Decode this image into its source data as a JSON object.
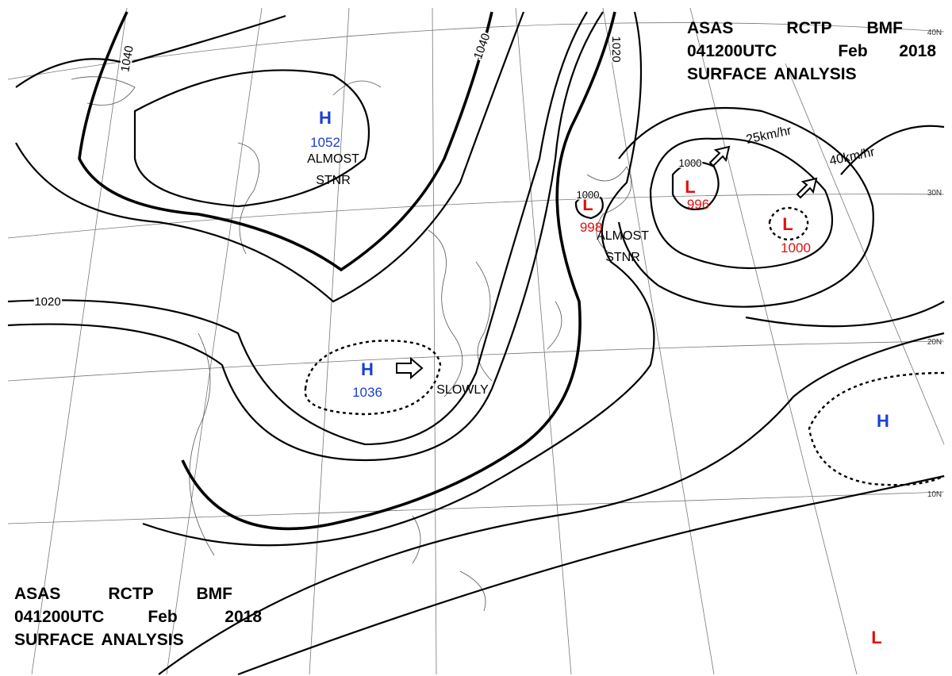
{
  "header_top": {
    "line1": [
      "ASAS",
      "RCTP",
      "BMF"
    ],
    "line2": [
      "041200UTC",
      "Feb",
      "2018"
    ],
    "line3": "SURFACE ANALYSIS"
  },
  "header_bottom": {
    "line1": [
      "ASAS",
      "RCTP",
      "BMF"
    ],
    "line2": [
      "041200UTC",
      "Feb",
      "2018"
    ],
    "line3": "SURFACE ANALYSIS"
  },
  "isobar_labels": [
    "1040",
    "1040",
    "1020",
    "1020"
  ],
  "systems": [
    {
      "symbol": "H",
      "value": 1052,
      "color": "#1a3fd0"
    },
    {
      "symbol": "H",
      "value": 1036,
      "color": "#1a3fd0"
    },
    {
      "symbol": "L",
      "value": 998,
      "color": "#e01010",
      "center_isobar": "1000"
    },
    {
      "symbol": "L",
      "value": 996,
      "color": "#e01010",
      "center_isobar": "1000"
    },
    {
      "symbol": "L",
      "value": 1000,
      "color": "#e01010"
    },
    {
      "symbol": "H",
      "color": "#1a3fd0"
    },
    {
      "symbol": "L",
      "color": "#e01010"
    }
  ],
  "notes": [
    "ALMOST",
    "STNR",
    "ALMOST",
    "STNR"
  ],
  "motions": [
    "25km/hr",
    "40km/hr",
    "SLOWLY"
  ],
  "latitudes": [
    "40N",
    "30N",
    "20N",
    "10N"
  ]
}
